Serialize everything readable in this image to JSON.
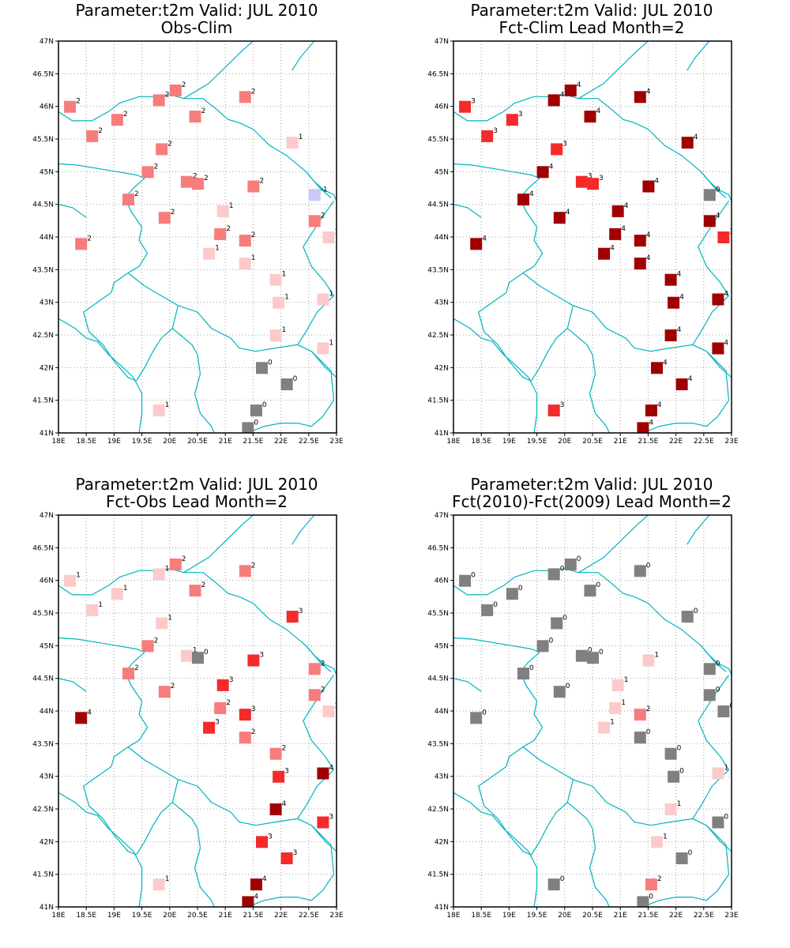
{
  "figure": {
    "colors": {
      "border": "#00b4be",
      "grid": "#a0a0a0",
      "frame": "#000000",
      "value_colors": {
        "-1": "#c8c8fa",
        "0": "#808080",
        "1": "#fccaca",
        "2": "#f77c7c",
        "3": "#f52a2a",
        "4": "#a00000",
        "5": "#a00000"
      }
    },
    "lon_ticks": [
      "18E",
      "18.5E",
      "19E",
      "19.5E",
      "20E",
      "20.5E",
      "21E",
      "21.5E",
      "22E",
      "22.5E",
      "23E"
    ],
    "lat_ticks": [
      "41N",
      "41.5N",
      "42N",
      "42.5N",
      "43N",
      "43.5N",
      "44N",
      "44.5N",
      "45N",
      "45.5N",
      "46N",
      "46.5N",
      "47N"
    ],
    "stations": [
      {
        "lon": 18.2,
        "lat": 46.0
      },
      {
        "lon": 18.6,
        "lat": 45.55
      },
      {
        "lon": 19.05,
        "lat": 45.8
      },
      {
        "lon": 19.8,
        "lat": 46.1
      },
      {
        "lon": 20.1,
        "lat": 46.25
      },
      {
        "lon": 20.45,
        "lat": 45.85
      },
      {
        "lon": 21.35,
        "lat": 46.15
      },
      {
        "lon": 22.2,
        "lat": 45.45
      },
      {
        "lon": 19.85,
        "lat": 45.35
      },
      {
        "lon": 19.6,
        "lat": 45.0
      },
      {
        "lon": 20.3,
        "lat": 44.85
      },
      {
        "lon": 20.5,
        "lat": 44.82
      },
      {
        "lon": 21.5,
        "lat": 44.78
      },
      {
        "lon": 22.6,
        "lat": 44.65
      },
      {
        "lon": 19.25,
        "lat": 44.58
      },
      {
        "lon": 19.9,
        "lat": 44.3
      },
      {
        "lon": 20.95,
        "lat": 44.4
      },
      {
        "lon": 22.6,
        "lat": 44.25
      },
      {
        "lon": 22.85,
        "lat": 44.0
      },
      {
        "lon": 18.4,
        "lat": 43.9
      },
      {
        "lon": 20.9,
        "lat": 44.05
      },
      {
        "lon": 21.35,
        "lat": 43.95
      },
      {
        "lon": 20.7,
        "lat": 43.75
      },
      {
        "lon": 21.35,
        "lat": 43.6
      },
      {
        "lon": 21.9,
        "lat": 43.35
      },
      {
        "lon": 21.95,
        "lat": 43.0
      },
      {
        "lon": 22.75,
        "lat": 43.05
      },
      {
        "lon": 21.9,
        "lat": 42.5
      },
      {
        "lon": 22.75,
        "lat": 42.3
      },
      {
        "lon": 21.65,
        "lat": 42.0
      },
      {
        "lon": 22.1,
        "lat": 41.75
      },
      {
        "lon": 19.8,
        "lat": 41.35
      },
      {
        "lon": 21.55,
        "lat": 41.35
      },
      {
        "lon": 21.4,
        "lat": 41.08
      }
    ],
    "panels": [
      {
        "title_line1": "Parameter:t2m Valid: JUL 2010",
        "title_line2": "Obs-Clim",
        "values": [
          2,
          2,
          2,
          2,
          2,
          2,
          2,
          1,
          2,
          2,
          2,
          2,
          2,
          -1,
          2,
          2,
          1,
          2,
          1,
          2,
          2,
          2,
          1,
          1,
          1,
          1,
          1,
          1,
          1,
          0,
          0,
          1,
          0,
          0
        ]
      },
      {
        "title_line1": "Parameter:t2m Valid: JUL 2010",
        "title_line2": "Fct-Clim Lead Month=2",
        "values": [
          3,
          3,
          3,
          4,
          4,
          4,
          4,
          4,
          3,
          4,
          3,
          3,
          4,
          0,
          4,
          4,
          4,
          4,
          3,
          4,
          4,
          4,
          4,
          4,
          4,
          4,
          4,
          4,
          4,
          4,
          4,
          3,
          4,
          4
        ]
      },
      {
        "title_line1": "Parameter:t2m Valid: JUL 2010",
        "title_line2": "Fct-Obs Lead Month=2",
        "values": [
          1,
          1,
          1,
          1,
          2,
          2,
          2,
          3,
          1,
          2,
          1,
          0,
          3,
          2,
          2,
          2,
          3,
          2,
          1,
          4,
          2,
          3,
          3,
          2,
          2,
          3,
          4,
          4,
          3,
          3,
          3,
          1,
          4,
          4
        ]
      },
      {
        "title_line1": "Parameter:t2m Valid: JUL 2010",
        "title_line2": "Fct(2010)-Fct(2009) Lead Month=2",
        "values": [
          0,
          0,
          0,
          0,
          0,
          0,
          0,
          0,
          0,
          0,
          0,
          0,
          1,
          0,
          0,
          0,
          1,
          0,
          0,
          0,
          1,
          2,
          1,
          0,
          0,
          0,
          1,
          1,
          0,
          1,
          0,
          0,
          2,
          0
        ]
      }
    ]
  }
}
